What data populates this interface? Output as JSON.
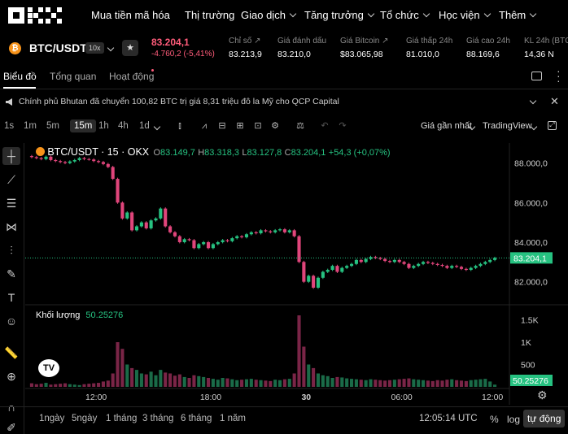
{
  "nav": {
    "items": [
      {
        "label": "Mua tiền mã hóa",
        "chev": false
      },
      {
        "label": "Thị trường",
        "chev": false
      },
      {
        "label": "Giao dịch",
        "chev": true
      },
      {
        "label": "Tăng trưởng",
        "chev": true
      },
      {
        "label": "Tổ chức",
        "chev": true
      },
      {
        "label": "Học viện",
        "chev": true
      },
      {
        "label": "Thêm",
        "chev": true
      }
    ]
  },
  "ticker": {
    "pair": "BTC/USDT",
    "leverage": "10x",
    "price": "83.204,1",
    "change": "-4.760,2 (-5,41%)",
    "stats": [
      {
        "label": "Chỉ số",
        "value": "83.213,9",
        "link": true
      },
      {
        "label": "Giá đánh dấu",
        "value": "83.210,0",
        "link": false
      },
      {
        "label": "Giá Bitcoin",
        "value": "$83.065,98",
        "link": true
      },
      {
        "label": "Giá thấp 24h",
        "value": "81.010,0",
        "link": false
      },
      {
        "label": "Giá cao 24h",
        "value": "88.169,6",
        "link": false
      },
      {
        "label": "KL 24h (BTC)",
        "value": "14,36 N",
        "link": false
      }
    ]
  },
  "tabs": [
    "Biểu đồ",
    "Tổng quan",
    "Hoạt động"
  ],
  "news": "Chính phủ Bhutan đã chuyển 100,82 BTC trị giá 8,31 triệu đô la Mỹ cho QCP Capital",
  "timeframes": [
    "1s",
    "1m",
    "5m",
    "15m",
    "1h",
    "4h",
    "1d"
  ],
  "active_timeframe": "15m",
  "toolbar_right": {
    "price_mode": "Giá gần nhất",
    "chart_lib": "TradingView"
  },
  "legend": {
    "symbol": "BTC/USDT · 15 · OKX",
    "o": "83.149,7",
    "h": "83.318,3",
    "l": "83.127,8",
    "c": "83.204,1",
    "chg": "+54,3 (+0,07%)"
  },
  "volume": {
    "label": "Khối lượng",
    "value": "50.25276"
  },
  "bottom": {
    "ranges": [
      "1ngày",
      "5ngày",
      "1 tháng",
      "3 tháng",
      "6 tháng",
      "1 năm"
    ],
    "time": "12:05:14 UTC",
    "pct": "%",
    "log": "log",
    "auto": "tự động"
  },
  "colors": {
    "up": "#26c281",
    "down": "#e0457b",
    "accent": "#26c281"
  },
  "chart_data": {
    "type": "candlestick",
    "price_axis": [
      "88.000,0",
      "86.000,0",
      "84.000,0",
      "82.000,0"
    ],
    "volume_axis": [
      "1.5K",
      "1K",
      "500"
    ],
    "time_axis": [
      "12:00",
      "18:00",
      "30",
      "06:00",
      "12:00"
    ],
    "last_price_label": "83.204,1",
    "last_volume_label": "50.25276",
    "closes": [
      88300,
      88250,
      88200,
      88320,
      88150,
      88100,
      88050,
      88000,
      88080,
      88150,
      88250,
      88200,
      88180,
      88100,
      88050,
      87950,
      87800,
      87200,
      86000,
      85200,
      85500,
      84600,
      84800,
      85000,
      84700,
      85100,
      85200,
      85700,
      84800,
      84500,
      84300,
      84000,
      84150,
      84100,
      83700,
      83900,
      84000,
      83700,
      83900,
      84000,
      84100,
      84050,
      84200,
      84300,
      84250,
      84400,
      84500,
      84450,
      84600,
      84550,
      84500,
      84600,
      84650,
      84500,
      84600,
      84300,
      83000,
      82000,
      82300,
      81700,
      82200,
      82500,
      82600,
      82800,
      82500,
      82700,
      82800,
      82900,
      83100,
      83000,
      83150,
      83250,
      83200,
      83150,
      83050,
      83000,
      83100,
      83000,
      82900,
      82700,
      82800,
      82900,
      83000,
      82950,
      82900,
      82850,
      82800,
      82700,
      82800,
      82750,
      82650,
      82600,
      82700,
      82800,
      82900,
      83000,
      83100,
      83204
    ],
    "volumes": [
      80,
      60,
      70,
      90,
      50,
      60,
      70,
      80,
      60,
      50,
      40,
      60,
      70,
      80,
      90,
      120,
      140,
      300,
      1000,
      850,
      500,
      420,
      380,
      300,
      280,
      340,
      260,
      380,
      320,
      300,
      250,
      280,
      220,
      200,
      260,
      240,
      220,
      200,
      180,
      160,
      200,
      190,
      170,
      150,
      160,
      170,
      180,
      160,
      150,
      140,
      130,
      160,
      150,
      170,
      180,
      300,
      1600,
      900,
      500,
      420,
      300,
      260,
      240,
      200,
      220,
      210,
      190,
      180,
      170,
      160,
      150,
      170,
      160,
      150,
      140,
      150,
      160,
      170,
      180,
      190,
      170,
      160,
      150,
      140,
      130,
      150,
      140,
      160,
      170,
      150,
      140,
      130,
      150,
      160,
      170,
      180,
      120,
      50
    ]
  }
}
